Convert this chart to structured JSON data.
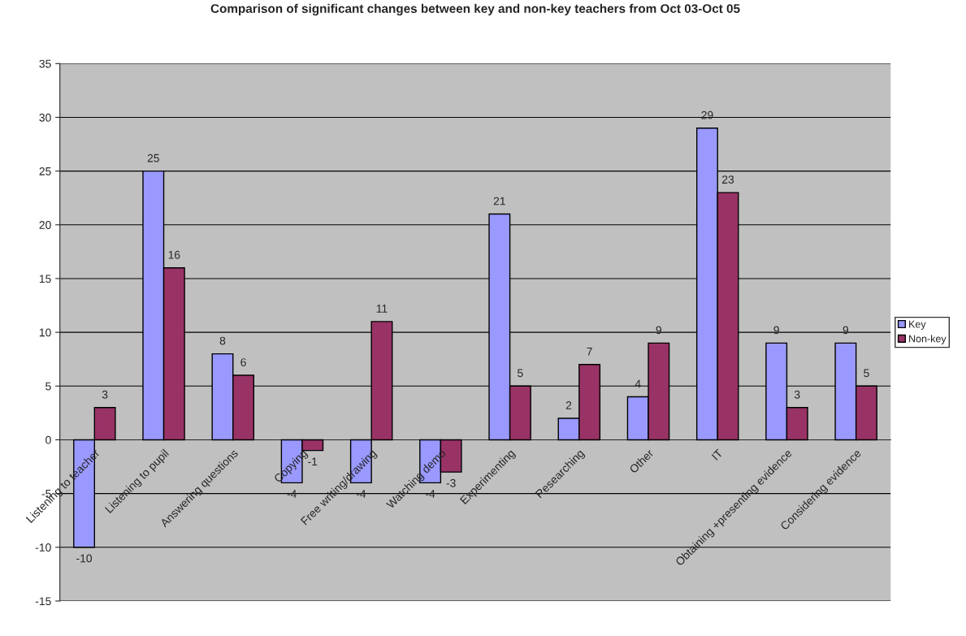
{
  "chart_data": {
    "type": "bar",
    "title": "Comparison of significant changes between key and non-key teachers from Oct 03-Oct 05",
    "categories": [
      "Listening to teacher",
      "Listening to pupil",
      "Answering questions",
      "Copying",
      "Free writing/drawing",
      "Watching demo",
      "Experimenting",
      "Researching",
      "Other",
      "IT",
      "Obtaining +presenting evidence",
      "Considering evidence"
    ],
    "series": [
      {
        "name": "Key",
        "color": "#9999ff",
        "values": [
          -10,
          25,
          8,
          -4,
          -4,
          -4,
          21,
          2,
          4,
          29,
          9,
          9
        ]
      },
      {
        "name": "Non-key",
        "color": "#993366",
        "values": [
          3,
          16,
          6,
          -1,
          11,
          -3,
          5,
          7,
          9,
          23,
          3,
          5
        ]
      }
    ],
    "ylim": [
      -15,
      35
    ],
    "yticks": [
      -15,
      -10,
      -5,
      0,
      5,
      10,
      15,
      20,
      25,
      30,
      35
    ],
    "grid": "y",
    "legend": "right",
    "data_labels": true
  }
}
